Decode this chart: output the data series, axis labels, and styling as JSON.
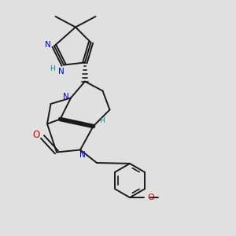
{
  "background_color": "#e0e0e0",
  "bond_color": "#1a1a1a",
  "nitrogen_color": "#0000cc",
  "oxygen_color": "#cc0000",
  "teal_color": "#008b8b",
  "figsize": [
    3.0,
    3.0
  ],
  "dpi": 100,
  "xlim": [
    0,
    10
  ],
  "ylim": [
    0,
    10
  ]
}
